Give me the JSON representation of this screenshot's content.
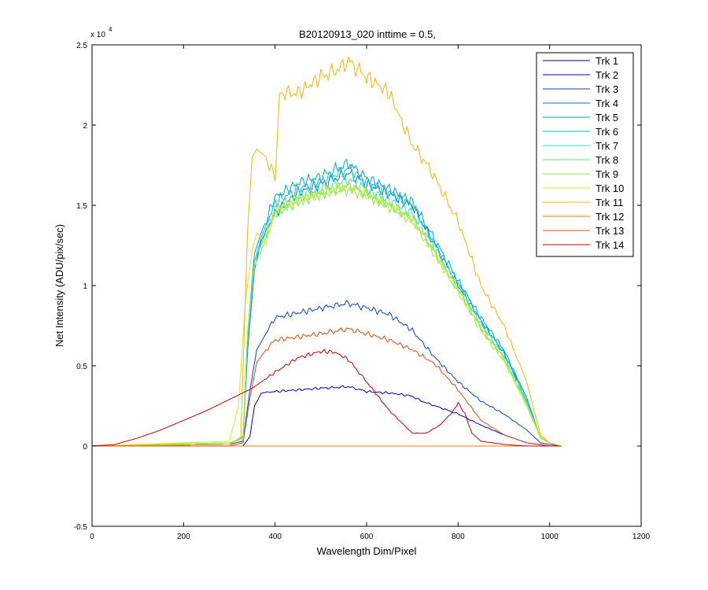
{
  "chart_data": {
    "type": "line",
    "title": "B20120913_020 inttime = 0.5,",
    "xlabel": "Wavelength Dim/Pixel",
    "ylabel": "Net Intensity (ADU/pix/sec)",
    "y_exponent_label": "x 10",
    "y_exponent": "4",
    "xlim": [
      0,
      1200
    ],
    "ylim": [
      -0.5,
      2.5
    ],
    "y_scale_factor": 10000,
    "xticks": [
      0,
      200,
      400,
      600,
      800,
      1000,
      1200
    ],
    "xtick_labels": [
      "0",
      "200",
      "400",
      "600",
      "800",
      "1000",
      "1200"
    ],
    "yticks": [
      -0.5,
      0,
      0.5,
      1,
      1.5,
      2,
      2.5
    ],
    "ytick_labels": [
      "-0.5",
      "0",
      "0.5",
      "1",
      "1.5",
      "2",
      "2.5"
    ],
    "grid": false,
    "legend_position": "top-right",
    "series": [
      {
        "name": "Trk 1",
        "color": "#00008f",
        "x": [
          0,
          300,
          340,
          360,
          400
        ],
        "y": [
          0,
          0,
          0,
          0,
          0
        ]
      },
      {
        "name": "Trk 2",
        "color": "#0000c8",
        "x": [
          0,
          330,
          345,
          355,
          370,
          400,
          450,
          500,
          560,
          600,
          650,
          680,
          700,
          720,
          800,
          850,
          900,
          950,
          1000,
          1025
        ],
        "y": [
          0,
          0,
          0.06,
          0.25,
          0.33,
          0.34,
          0.35,
          0.36,
          0.37,
          0.34,
          0.33,
          0.32,
          0.31,
          0.28,
          0.2,
          0.13,
          0.07,
          0.02,
          0,
          0
        ]
      },
      {
        "name": "Trk 3",
        "color": "#0045cc",
        "x": [
          0,
          300,
          330,
          345,
          360,
          380,
          400,
          450,
          500,
          560,
          600,
          650,
          700,
          750,
          800,
          850,
          900,
          950,
          980,
          1000,
          1025
        ],
        "y": [
          0,
          0.01,
          0.03,
          0.35,
          0.6,
          0.7,
          0.8,
          0.83,
          0.86,
          0.89,
          0.86,
          0.82,
          0.72,
          0.55,
          0.4,
          0.28,
          0.2,
          0.1,
          0.02,
          0.01,
          0
        ]
      },
      {
        "name": "Trk 4",
        "color": "#0079c0",
        "x": [
          0,
          300,
          330,
          340,
          355,
          370,
          400,
          450,
          500,
          560,
          600,
          650,
          700,
          740,
          800,
          850,
          900,
          950,
          980,
          1000,
          1025
        ],
        "y": [
          0,
          0.01,
          0.06,
          0.6,
          1.1,
          1.28,
          1.45,
          1.58,
          1.63,
          1.7,
          1.63,
          1.57,
          1.5,
          1.3,
          1.0,
          0.78,
          0.58,
          0.3,
          0.05,
          0.02,
          0
        ]
      },
      {
        "name": "Trk 5",
        "color": "#00a3d0",
        "x": [
          0,
          300,
          330,
          340,
          355,
          370,
          400,
          450,
          500,
          560,
          600,
          650,
          700,
          740,
          800,
          850,
          900,
          950,
          980,
          1000,
          1025
        ],
        "y": [
          0,
          0.01,
          0.06,
          0.7,
          1.2,
          1.33,
          1.55,
          1.64,
          1.68,
          1.76,
          1.67,
          1.6,
          1.52,
          1.33,
          1.03,
          0.8,
          0.6,
          0.3,
          0.05,
          0.02,
          0
        ]
      },
      {
        "name": "Trk 6",
        "color": "#00c0dc",
        "x": [
          0,
          300,
          330,
          340,
          355,
          370,
          400,
          450,
          500,
          560,
          600,
          650,
          700,
          740,
          800,
          850,
          900,
          950,
          980,
          1000,
          1025
        ],
        "y": [
          0,
          0.01,
          0.06,
          0.68,
          1.15,
          1.3,
          1.52,
          1.6,
          1.65,
          1.73,
          1.65,
          1.58,
          1.5,
          1.3,
          1.02,
          0.78,
          0.58,
          0.28,
          0.05,
          0.02,
          0
        ]
      },
      {
        "name": "Trk 7",
        "color": "#2ee0d0",
        "x": [
          0,
          300,
          330,
          340,
          355,
          370,
          400,
          450,
          500,
          560,
          600,
          650,
          700,
          740,
          800,
          850,
          900,
          950,
          980,
          1000,
          1025
        ],
        "y": [
          0,
          0.02,
          0.05,
          0.7,
          1.15,
          1.26,
          1.48,
          1.56,
          1.6,
          1.66,
          1.6,
          1.53,
          1.45,
          1.28,
          1.0,
          0.76,
          0.56,
          0.27,
          0.05,
          0.02,
          0
        ]
      },
      {
        "name": "Trk 8",
        "color": "#5de96f",
        "x": [
          0,
          300,
          330,
          340,
          355,
          370,
          400,
          450,
          500,
          560,
          600,
          650,
          700,
          740,
          800,
          850,
          900,
          950,
          980,
          1000,
          1025
        ],
        "y": [
          0,
          0.02,
          0.05,
          0.72,
          1.12,
          1.22,
          1.45,
          1.52,
          1.57,
          1.62,
          1.57,
          1.5,
          1.42,
          1.25,
          0.98,
          0.74,
          0.55,
          0.26,
          0.05,
          0.02,
          0
        ]
      },
      {
        "name": "Trk 9",
        "color": "#9be83a",
        "x": [
          0,
          300,
          330,
          340,
          355,
          370,
          400,
          450,
          500,
          560,
          600,
          650,
          700,
          740,
          800,
          850,
          900,
          950,
          980,
          1000,
          1025
        ],
        "y": [
          0,
          0.02,
          0.04,
          0.72,
          1.12,
          1.22,
          1.46,
          1.53,
          1.57,
          1.6,
          1.56,
          1.49,
          1.4,
          1.23,
          0.96,
          0.72,
          0.53,
          0.25,
          0.05,
          0.02,
          0
        ]
      },
      {
        "name": "Trk 10",
        "color": "#d6e816",
        "x": [
          0,
          300,
          320,
          335,
          350,
          360,
          370,
          380,
          400,
          450,
          500,
          560,
          600,
          650,
          700,
          740,
          800,
          850,
          900,
          950,
          980,
          1000,
          1025
        ],
        "y": [
          0,
          0.03,
          0.25,
          0.9,
          1.22,
          1.33,
          1.3,
          1.25,
          1.47,
          1.54,
          1.58,
          1.62,
          1.57,
          1.5,
          1.41,
          1.24,
          0.97,
          0.73,
          0.54,
          0.26,
          0.06,
          0.02,
          0
        ]
      },
      {
        "name": "Trk 11",
        "color": "#f2b600",
        "x": [
          0,
          300,
          325,
          340,
          350,
          360,
          380,
          395,
          400,
          410,
          450,
          500,
          540,
          560,
          600,
          650,
          680,
          700,
          740,
          800,
          850,
          900,
          950,
          980,
          1000,
          1025
        ],
        "y": [
          0,
          0.01,
          0.05,
          1.35,
          1.8,
          1.85,
          1.8,
          1.7,
          1.65,
          2.2,
          2.2,
          2.3,
          2.35,
          2.4,
          2.3,
          2.2,
          2.0,
          1.88,
          1.72,
          1.4,
          1.0,
          0.75,
          0.4,
          0.07,
          0.02,
          0
        ]
      },
      {
        "name": "Trk 12",
        "color": "#f07800",
        "x": [
          0,
          300,
          340,
          600,
          700,
          800,
          900,
          1000,
          1025
        ],
        "y": [
          0,
          0,
          0,
          0,
          0,
          0,
          0,
          0,
          0
        ]
      },
      {
        "name": "Trk 13",
        "color": "#e04a10",
        "x": [
          0,
          300,
          330,
          345,
          360,
          380,
          400,
          450,
          500,
          560,
          600,
          650,
          700,
          750,
          800,
          850,
          900,
          950,
          980,
          1000,
          1025
        ],
        "y": [
          0,
          0,
          0.02,
          0.3,
          0.52,
          0.6,
          0.66,
          0.68,
          0.7,
          0.73,
          0.7,
          0.66,
          0.6,
          0.51,
          0.35,
          0.16,
          0.07,
          0.02,
          0.01,
          0,
          0
        ]
      },
      {
        "name": "Trk 14",
        "color": "#cc0000",
        "x": [
          0,
          50,
          100,
          150,
          200,
          250,
          300,
          350,
          400,
          450,
          500,
          530,
          560,
          600,
          650,
          700,
          730,
          760,
          790,
          800,
          815,
          830,
          850,
          900,
          950,
          1000,
          1025
        ],
        "y": [
          0,
          0.01,
          0.05,
          0.1,
          0.16,
          0.22,
          0.29,
          0.36,
          0.46,
          0.55,
          0.59,
          0.585,
          0.54,
          0.4,
          0.22,
          0.08,
          0.08,
          0.13,
          0.22,
          0.27,
          0.2,
          0.08,
          0.03,
          0.01,
          0,
          0,
          0
        ]
      }
    ]
  }
}
